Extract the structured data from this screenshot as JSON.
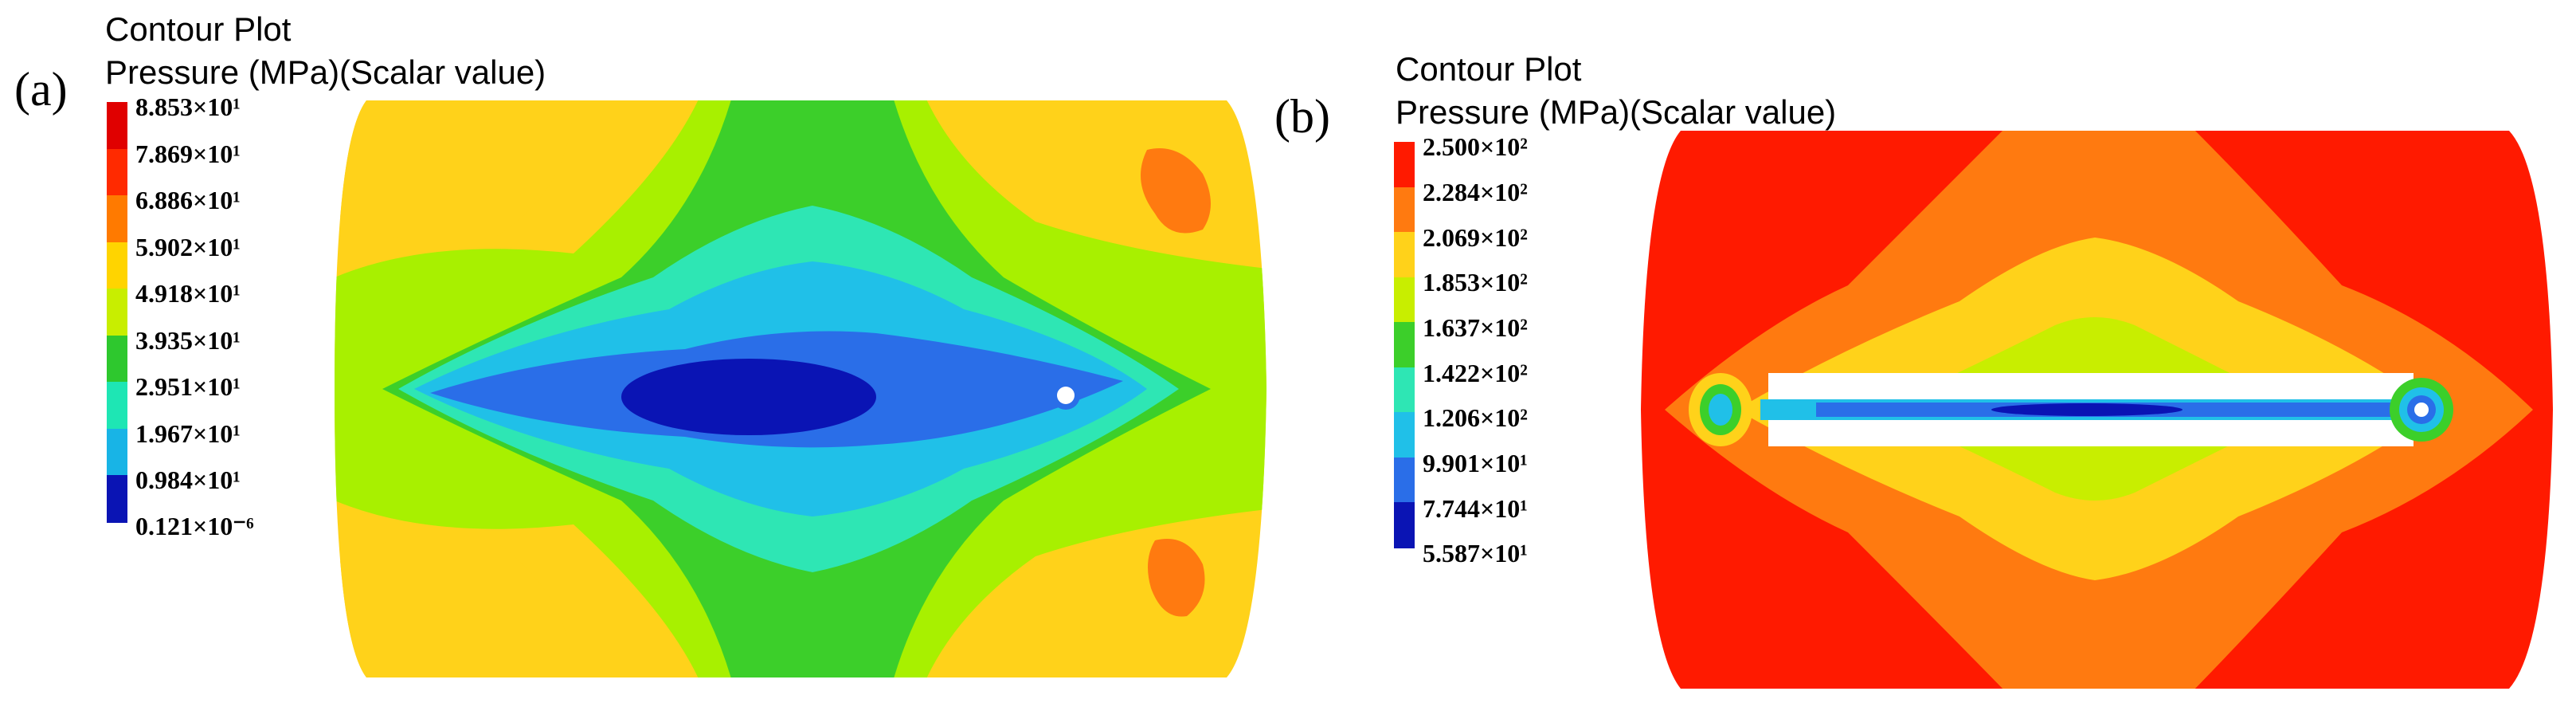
{
  "panels": [
    {
      "tag": "(a)",
      "title_line1": "Contour Plot",
      "title_line2": "Pressure (MPa)(Scalar value)",
      "legend_values": [
        "8.853×10¹",
        "7.869×10¹",
        "6.886×10¹",
        "5.902×10¹",
        "4.918×10¹",
        "3.935×10¹",
        "2.951×10¹",
        "1.967×10¹",
        "0.984×10¹",
        "0.121×10⁻⁶"
      ]
    },
    {
      "tag": "(b)",
      "title_line1": "Contour Plot",
      "title_line2": "Pressure (MPa)(Scalar value)",
      "legend_values": [
        "2.500×10²",
        "2.284×10²",
        "2.069×10²",
        "1.853×10²",
        "1.637×10²",
        "1.422×10²",
        "1.206×10²",
        "9.901×10¹",
        "7.744×10¹",
        "5.587×10¹"
      ]
    }
  ],
  "colors": {
    "scale": [
      "#e00000",
      "#ff2a00",
      "#ff7a00",
      "#ffd400",
      "#c8ee00",
      "#2ec82e",
      "#1ee6b4",
      "#18b4e6",
      "#2364e6",
      "#0a14b4"
    ],
    "red": "#ff1a00",
    "orange": "#ff7a10",
    "yellow": "#ffd21a",
    "yellowgreen": "#a8f000",
    "green": "#3ccf2a",
    "aqua": "#2ee6b4",
    "cyan": "#20c0e8",
    "blue": "#2a6ee8",
    "navy": "#0a14b4"
  }
}
